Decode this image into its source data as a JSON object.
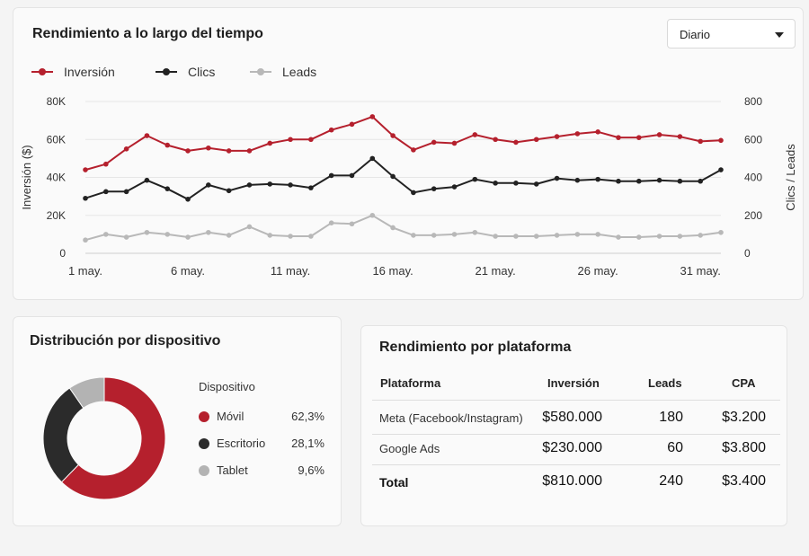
{
  "performance_card": {
    "title": "Rendimiento a lo largo del tiempo",
    "period_select": {
      "value": "Diario"
    },
    "legend": [
      {
        "label": "Inversión",
        "color": "#b5202d"
      },
      {
        "label": "Clics",
        "color": "#222222"
      },
      {
        "label": "Leads",
        "color": "#b8b8b8"
      }
    ]
  },
  "chart_data": [
    {
      "type": "line",
      "x": [
        1,
        2,
        3,
        4,
        5,
        6,
        7,
        8,
        9,
        10,
        11,
        12,
        13,
        14,
        15,
        16,
        17,
        18,
        19,
        20,
        21,
        22,
        23,
        24,
        25,
        26,
        27,
        28,
        29,
        30,
        31,
        32
      ],
      "xticks": [
        "1 may.",
        "6 may.",
        "11 may.",
        "16 may.",
        "21 may.",
        "26 may.",
        "31 may."
      ],
      "xtick_positions": [
        1,
        6,
        11,
        16,
        21,
        26,
        31
      ],
      "ylabel": "Inversión ($)",
      "y2label": "Clics / Leads",
      "ylim": [
        0,
        80000
      ],
      "y2lim": [
        0,
        800
      ],
      "yticks": [
        "0",
        "20K",
        "40K",
        "60K",
        "80K"
      ],
      "y2ticks": [
        "0",
        "200",
        "400",
        "600",
        "800"
      ],
      "grid": true,
      "series": [
        {
          "name": "Inversión",
          "axis": "left",
          "color": "#b5202d",
          "values": [
            44000,
            47000,
            55000,
            62000,
            57000,
            54000,
            55500,
            54000,
            54000,
            58000,
            60000,
            60000,
            65000,
            68000,
            72000,
            62000,
            54500,
            58500,
            58000,
            62500,
            60000,
            58500,
            60000,
            61500,
            63000,
            64000,
            61000,
            61000,
            62500,
            61500,
            59000,
            59500
          ]
        },
        {
          "name": "Clics",
          "axis": "right",
          "color": "#222222",
          "values": [
            290,
            325,
            325,
            385,
            340,
            285,
            360,
            330,
            360,
            365,
            360,
            345,
            410,
            410,
            500,
            405,
            320,
            340,
            350,
            390,
            370,
            370,
            365,
            395,
            385,
            390,
            380,
            380,
            385,
            380,
            380,
            440
          ]
        },
        {
          "name": "Leads",
          "axis": "right",
          "color": "#b8b8b8",
          "values": [
            70,
            100,
            85,
            110,
            100,
            85,
            110,
            95,
            140,
            95,
            90,
            90,
            160,
            155,
            200,
            135,
            95,
            95,
            100,
            110,
            90,
            90,
            90,
            95,
            100,
            100,
            85,
            85,
            90,
            90,
            95,
            110
          ]
        }
      ]
    },
    {
      "type": "pie",
      "title": "Distribución por dispositivo",
      "legend_title": "Dispositivo",
      "categories": [
        "Móvil",
        "Escritorio",
        "Tablet"
      ],
      "values": [
        62.3,
        28.1,
        9.6
      ],
      "labels": [
        "62,3%",
        "28,1%",
        "9,6%"
      ],
      "colors": [
        "#b5202d",
        "#2b2b2b",
        "#b3b3b3"
      ]
    }
  ],
  "platform_card": {
    "title": "Rendimiento por plataforma",
    "headers": [
      "Plataforma",
      "Inversión",
      "Leads",
      "CPA"
    ],
    "rows": [
      [
        "Meta (Facebook/Instagram)",
        "$580.000",
        "180",
        "$3.200"
      ],
      [
        "Google Ads",
        "$230.000",
        "60",
        "$3.800"
      ]
    ],
    "total": [
      "Total",
      "$810.000",
      "240",
      "$3.400"
    ]
  }
}
